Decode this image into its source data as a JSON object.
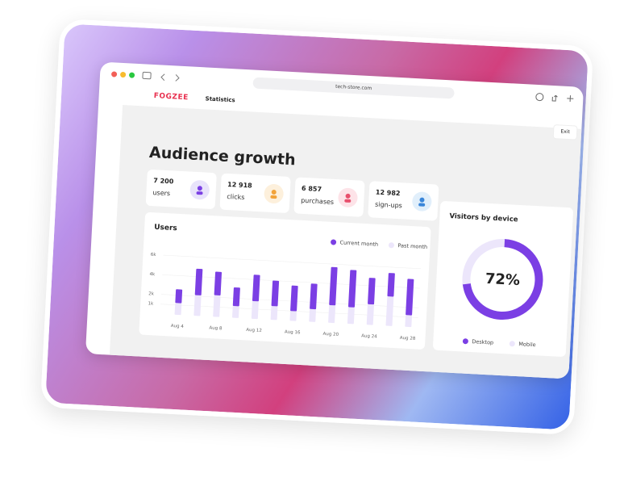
{
  "browser": {
    "url": "tech-store.com"
  },
  "header": {
    "brand": "FOGZEE",
    "nav": "Statistics",
    "button": "Exit"
  },
  "page_title": "Audience growth",
  "stats": [
    {
      "value": "7 200",
      "label": "users"
    },
    {
      "value": "12 918",
      "label": "clicks"
    },
    {
      "value": "6 857",
      "label": "purchases"
    },
    {
      "value": "12 982",
      "label": "sign-ups"
    }
  ],
  "chart_data": [
    {
      "type": "bar",
      "title": "Users",
      "stacked": true,
      "grid": true,
      "categories": [
        "Aug 4",
        null,
        "Aug 8",
        null,
        "Aug 12",
        null,
        "Aug 16",
        null,
        "Aug 20",
        null,
        "Aug 24",
        null,
        "Aug 28"
      ],
      "series": [
        {
          "name": "Current month",
          "color": "#7b3fe4",
          "values": [
            1400,
            2700,
            2400,
            1900,
            2700,
            2600,
            2600,
            2600,
            3900,
            3800,
            2700,
            2400,
            3700
          ]
        },
        {
          "name": "Past month",
          "color": "#ece6fb",
          "values": [
            1200,
            2100,
            2200,
            1200,
            1800,
            1400,
            1000,
            1300,
            1800,
            1700,
            2100,
            3000,
            1200
          ]
        }
      ],
      "ylim": [
        0,
        7000
      ],
      "yticks": [
        {
          "value": 1000,
          "label": "1k"
        },
        {
          "value": 2000,
          "label": "2k"
        },
        {
          "value": 4000,
          "label": "4k"
        },
        {
          "value": 6000,
          "label": "6k"
        }
      ]
    },
    {
      "type": "pie",
      "donut": true,
      "title": "Visitors by device",
      "categories": [
        "Desktop",
        "Mobile"
      ],
      "values": [
        72,
        28
      ],
      "value_labels": [
        "72%",
        null
      ],
      "colors": [
        "#7b3fe4",
        "#ece6fb"
      ]
    }
  ]
}
